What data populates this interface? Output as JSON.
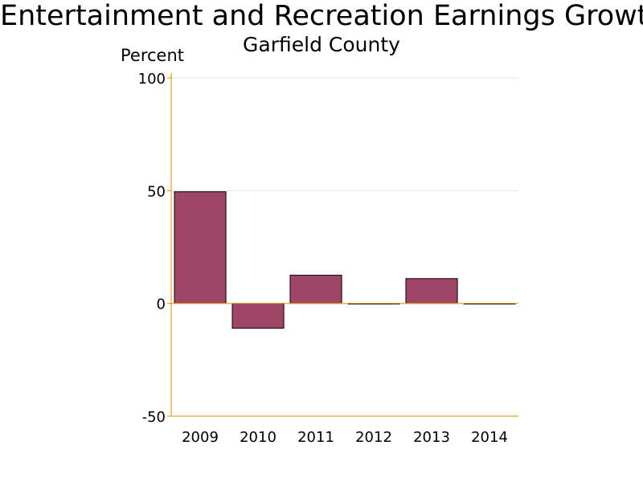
{
  "chart_data": {
    "type": "bar",
    "title": "Entertainment and Recreation Earnings Growth",
    "subtitle": "Garfield County",
    "ylabel": "Percent",
    "xlabel": "",
    "categories": [
      "2009",
      "2010",
      "2011",
      "2012",
      "2013",
      "2014"
    ],
    "values": [
      49.5,
      -11.0,
      12.5,
      0,
      11.0,
      0
    ],
    "ylim": [
      -50,
      100
    ],
    "yticks": [
      -50,
      0,
      50,
      100
    ],
    "grid": true,
    "legend": "none",
    "colors": {
      "bar_fill": "#a04468",
      "bar_outline": "#000000",
      "axis": "#e8a020",
      "grid": "#e6e6e6",
      "text": "#000000"
    }
  }
}
